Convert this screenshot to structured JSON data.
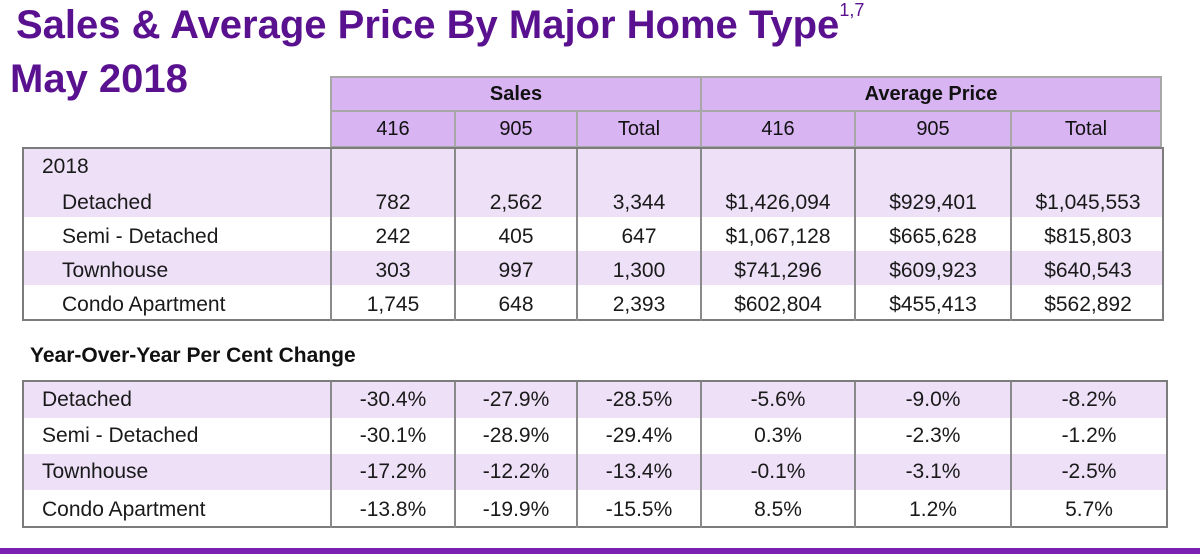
{
  "header": {
    "title": "Sales & Average Price By Major Home Type",
    "title_superscript": "1,7",
    "subtitle": "May 2018"
  },
  "column_groups": [
    "Sales",
    "Average Price"
  ],
  "columns": [
    "416",
    "905",
    "Total",
    "416",
    "905",
    "Total"
  ],
  "sales_table": {
    "year_label": "2018",
    "rows": [
      {
        "label": "Detached",
        "values": [
          "782",
          "2,562",
          "3,344",
          "$1,426,094",
          "$929,401",
          "$1,045,553"
        ]
      },
      {
        "label": "Semi - Detached",
        "values": [
          "242",
          "405",
          "647",
          "$1,067,128",
          "$665,628",
          "$815,803"
        ]
      },
      {
        "label": "Townhouse",
        "values": [
          "303",
          "997",
          "1,300",
          "$741,296",
          "$609,923",
          "$640,543"
        ]
      },
      {
        "label": "Condo Apartment",
        "values": [
          "1,745",
          "648",
          "2,393",
          "$602,804",
          "$455,413",
          "$562,892"
        ]
      }
    ]
  },
  "yoy_section_title": "Year-Over-Year Per Cent Change",
  "yoy_table": {
    "rows": [
      {
        "label": "Detached",
        "values": [
          "-30.4%",
          "-27.9%",
          "-28.5%",
          "-5.6%",
          "-9.0%",
          "-8.2%"
        ]
      },
      {
        "label": "Semi - Detached",
        "values": [
          "-30.1%",
          "-28.9%",
          "-29.4%",
          "0.3%",
          "-2.3%",
          "-1.2%"
        ]
      },
      {
        "label": "Townhouse",
        "values": [
          "-17.2%",
          "-12.2%",
          "-13.4%",
          "-0.1%",
          "-3.1%",
          "-2.5%"
        ]
      },
      {
        "label": "Condo Apartment",
        "values": [
          "-13.8%",
          "-19.9%",
          "-15.5%",
          "8.5%",
          "1.2%",
          "5.7%"
        ]
      }
    ]
  },
  "colors": {
    "title": "#5a1190",
    "header_fill": "#d8b4f2",
    "row_shade": "#ede0f7",
    "accent_bar": "#7a1fb0"
  }
}
